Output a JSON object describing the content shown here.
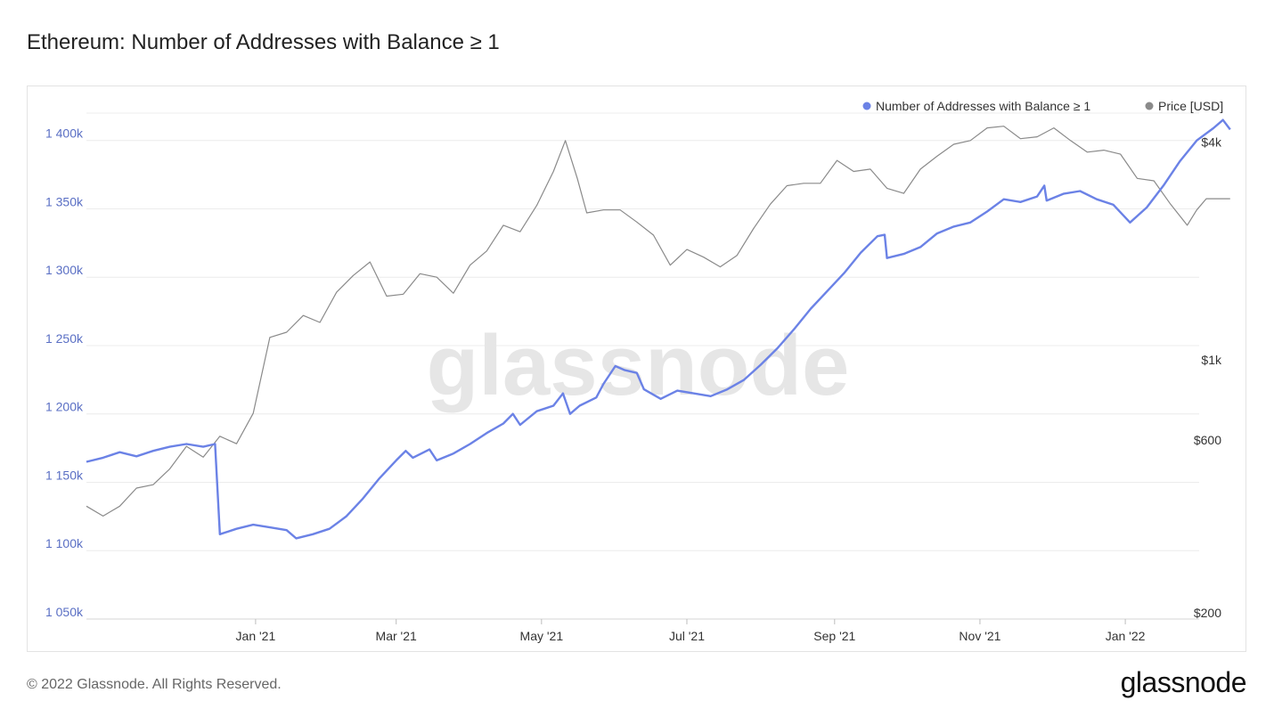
{
  "title": "Ethereum: Number of Addresses with Balance ≥ 1",
  "footer": "© 2022 Glassnode. All Rights Reserved.",
  "brand": "glassnode",
  "watermark": "glassnode",
  "colors": {
    "addresses": "#6b82e6",
    "price": "#8a8a8a",
    "grid": "#ececec",
    "left_axis_text": "#5a6fc4",
    "right_axis_text": "#333333",
    "watermark": "#e6e6e6"
  },
  "chart_data": {
    "type": "line",
    "title": "Ethereum: Number of Addresses with Balance ≥ 1",
    "legend_position": "top-right",
    "grid": true,
    "x_tick_labels": [
      "Jan '21",
      "Mar '21",
      "May '21",
      "Jul '21",
      "Sep '21",
      "Nov '21",
      "Jan '22"
    ],
    "x_range": [
      "2020-10-22",
      "2022-02-01"
    ],
    "y_left": {
      "range": [
        1050000,
        1420000
      ],
      "ticks": [
        1050000,
        1100000,
        1150000,
        1200000,
        1250000,
        1300000,
        1350000,
        1400000
      ],
      "tick_labels": [
        "1 050k",
        "1 100k",
        "1 150k",
        "1 200k",
        "1 250k",
        "1 300k",
        "1 350k",
        "1 400k"
      ]
    },
    "y_right": {
      "scale": "log",
      "range": [
        200,
        5000
      ],
      "ticks": [
        200,
        600,
        1000,
        4000
      ],
      "tick_labels": [
        "$200",
        "$600",
        "$1k",
        "$4k"
      ]
    },
    "series": [
      {
        "name": "Number of Addresses with Balance ≥ 1",
        "axis": "left",
        "points": [
          [
            "2020-10-22",
            1165000
          ],
          [
            "2020-10-29",
            1168000
          ],
          [
            "2020-11-05",
            1172000
          ],
          [
            "2020-11-12",
            1169000
          ],
          [
            "2020-11-19",
            1173000
          ],
          [
            "2020-11-26",
            1176000
          ],
          [
            "2020-12-03",
            1178000
          ],
          [
            "2020-12-10",
            1176000
          ],
          [
            "2020-12-15",
            1178000
          ],
          [
            "2020-12-17",
            1112000
          ],
          [
            "2020-12-24",
            1116000
          ],
          [
            "2020-12-31",
            1119000
          ],
          [
            "2021-01-07",
            1117000
          ],
          [
            "2021-01-14",
            1115000
          ],
          [
            "2021-01-18",
            1109000
          ],
          [
            "2021-01-25",
            1112000
          ],
          [
            "2021-02-01",
            1116000
          ],
          [
            "2021-02-08",
            1125000
          ],
          [
            "2021-02-15",
            1138000
          ],
          [
            "2021-02-22",
            1153000
          ],
          [
            "2021-03-01",
            1166000
          ],
          [
            "2021-03-05",
            1173000
          ],
          [
            "2021-03-08",
            1168000
          ],
          [
            "2021-03-15",
            1174000
          ],
          [
            "2021-03-18",
            1166000
          ],
          [
            "2021-03-25",
            1171000
          ],
          [
            "2021-04-01",
            1178000
          ],
          [
            "2021-04-08",
            1186000
          ],
          [
            "2021-04-15",
            1193000
          ],
          [
            "2021-04-19",
            1200000
          ],
          [
            "2021-04-22",
            1192000
          ],
          [
            "2021-04-29",
            1202000
          ],
          [
            "2021-05-06",
            1206000
          ],
          [
            "2021-05-10",
            1215000
          ],
          [
            "2021-05-13",
            1200000
          ],
          [
            "2021-05-17",
            1206000
          ],
          [
            "2021-05-24",
            1212000
          ],
          [
            "2021-05-27",
            1222000
          ],
          [
            "2021-06-01",
            1235000
          ],
          [
            "2021-06-05",
            1232000
          ],
          [
            "2021-06-10",
            1230000
          ],
          [
            "2021-06-13",
            1218000
          ],
          [
            "2021-06-20",
            1211000
          ],
          [
            "2021-06-27",
            1217000
          ],
          [
            "2021-07-04",
            1215000
          ],
          [
            "2021-07-11",
            1213000
          ],
          [
            "2021-07-18",
            1218000
          ],
          [
            "2021-07-25",
            1225000
          ],
          [
            "2021-08-01",
            1236000
          ],
          [
            "2021-08-08",
            1248000
          ],
          [
            "2021-08-15",
            1262000
          ],
          [
            "2021-08-22",
            1277000
          ],
          [
            "2021-08-29",
            1290000
          ],
          [
            "2021-09-05",
            1303000
          ],
          [
            "2021-09-12",
            1318000
          ],
          [
            "2021-09-19",
            1330000
          ],
          [
            "2021-09-22",
            1331000
          ],
          [
            "2021-09-23",
            1314000
          ],
          [
            "2021-09-30",
            1317000
          ],
          [
            "2021-10-07",
            1322000
          ],
          [
            "2021-10-14",
            1332000
          ],
          [
            "2021-10-21",
            1337000
          ],
          [
            "2021-10-28",
            1340000
          ],
          [
            "2021-11-04",
            1348000
          ],
          [
            "2021-11-11",
            1357000
          ],
          [
            "2021-11-18",
            1355000
          ],
          [
            "2021-11-25",
            1359000
          ],
          [
            "2021-11-28",
            1367000
          ],
          [
            "2021-11-29",
            1356000
          ],
          [
            "2021-12-06",
            1361000
          ],
          [
            "2021-12-13",
            1363000
          ],
          [
            "2021-12-20",
            1357000
          ],
          [
            "2021-12-27",
            1353000
          ],
          [
            "2022-01-03",
            1340000
          ],
          [
            "2022-01-10",
            1351000
          ],
          [
            "2022-01-17",
            1367000
          ],
          [
            "2022-01-24",
            1385000
          ],
          [
            "2022-01-31",
            1400000
          ],
          [
            "2022-02-07",
            1409000
          ],
          [
            "2022-02-11",
            1415000
          ],
          [
            "2022-02-14",
            1408000
          ]
        ]
      },
      {
        "name": "Price [USD]",
        "axis": "right",
        "points": [
          [
            "2020-10-22",
            410
          ],
          [
            "2020-10-29",
            385
          ],
          [
            "2020-11-05",
            410
          ],
          [
            "2020-11-12",
            460
          ],
          [
            "2020-11-19",
            470
          ],
          [
            "2020-11-26",
            520
          ],
          [
            "2020-12-03",
            600
          ],
          [
            "2020-12-10",
            560
          ],
          [
            "2020-12-17",
            640
          ],
          [
            "2020-12-24",
            610
          ],
          [
            "2020-12-31",
            740
          ],
          [
            "2021-01-07",
            1200
          ],
          [
            "2021-01-14",
            1240
          ],
          [
            "2021-01-21",
            1380
          ],
          [
            "2021-01-28",
            1320
          ],
          [
            "2021-02-04",
            1600
          ],
          [
            "2021-02-11",
            1780
          ],
          [
            "2021-02-18",
            1940
          ],
          [
            "2021-02-25",
            1560
          ],
          [
            "2021-03-04",
            1580
          ],
          [
            "2021-03-11",
            1800
          ],
          [
            "2021-03-18",
            1760
          ],
          [
            "2021-03-25",
            1590
          ],
          [
            "2021-04-01",
            1900
          ],
          [
            "2021-04-08",
            2080
          ],
          [
            "2021-04-15",
            2450
          ],
          [
            "2021-04-22",
            2350
          ],
          [
            "2021-04-29",
            2780
          ],
          [
            "2021-05-06",
            3450
          ],
          [
            "2021-05-11",
            4200
          ],
          [
            "2021-05-16",
            3300
          ],
          [
            "2021-05-20",
            2650
          ],
          [
            "2021-05-27",
            2700
          ],
          [
            "2021-06-03",
            2700
          ],
          [
            "2021-06-10",
            2500
          ],
          [
            "2021-06-17",
            2300
          ],
          [
            "2021-06-24",
            1900
          ],
          [
            "2021-07-01",
            2100
          ],
          [
            "2021-07-08",
            2000
          ],
          [
            "2021-07-15",
            1880
          ],
          [
            "2021-07-22",
            2020
          ],
          [
            "2021-07-29",
            2400
          ],
          [
            "2021-08-05",
            2800
          ],
          [
            "2021-08-12",
            3150
          ],
          [
            "2021-08-19",
            3200
          ],
          [
            "2021-08-26",
            3200
          ],
          [
            "2021-09-02",
            3700
          ],
          [
            "2021-09-09",
            3450
          ],
          [
            "2021-09-16",
            3500
          ],
          [
            "2021-09-23",
            3100
          ],
          [
            "2021-09-30",
            3000
          ],
          [
            "2021-10-07",
            3500
          ],
          [
            "2021-10-14",
            3800
          ],
          [
            "2021-10-21",
            4100
          ],
          [
            "2021-10-28",
            4200
          ],
          [
            "2021-11-04",
            4550
          ],
          [
            "2021-11-11",
            4600
          ],
          [
            "2021-11-18",
            4250
          ],
          [
            "2021-11-25",
            4300
          ],
          [
            "2021-12-02",
            4550
          ],
          [
            "2021-12-09",
            4200
          ],
          [
            "2021-12-16",
            3900
          ],
          [
            "2021-12-23",
            3950
          ],
          [
            "2021-12-30",
            3850
          ],
          [
            "2022-01-06",
            3300
          ],
          [
            "2022-01-13",
            3250
          ],
          [
            "2022-01-20",
            2800
          ],
          [
            "2022-01-27",
            2450
          ],
          [
            "2022-01-31",
            2700
          ],
          [
            "2022-02-04",
            2900
          ],
          [
            "2022-02-14",
            2900
          ]
        ]
      }
    ]
  }
}
